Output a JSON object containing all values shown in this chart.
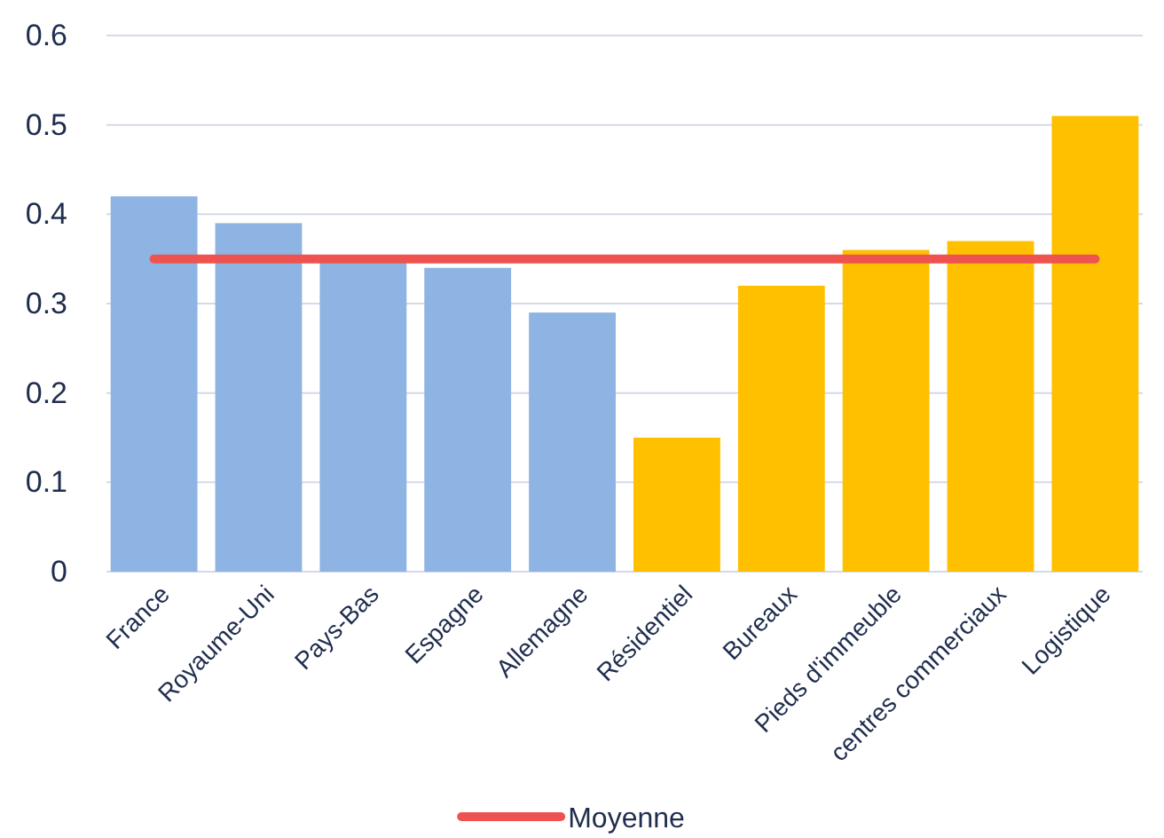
{
  "chart_data": {
    "type": "bar",
    "categories": [
      "France",
      "Royaume-Uni",
      "Pays-Bas",
      "Espagne",
      "Allemagne",
      "Résidentiel",
      "Bureaux",
      "Pieds d'immeuble",
      "centres commerciaux",
      "Logistique"
    ],
    "values": [
      0.42,
      0.39,
      0.35,
      0.34,
      0.29,
      0.15,
      0.32,
      0.36,
      0.37,
      0.51
    ],
    "colors": [
      "#8db4e2",
      "#8db4e2",
      "#8db4e2",
      "#8db4e2",
      "#8db4e2",
      "#ffc000",
      "#ffc000",
      "#ffc000",
      "#ffc000",
      "#ffc000"
    ],
    "series": [
      {
        "type": "line",
        "name": "Moyenne",
        "color": "#ef5350",
        "values": [
          0.35,
          0.35,
          0.35,
          0.35,
          0.35,
          0.35,
          0.35,
          0.35,
          0.35,
          0.35
        ]
      }
    ],
    "ylim": [
      0,
      0.6
    ],
    "yticks": [
      0,
      0.1,
      0.2,
      0.3,
      0.4,
      0.5,
      0.6
    ],
    "grid": "y",
    "legend": "bottom"
  }
}
